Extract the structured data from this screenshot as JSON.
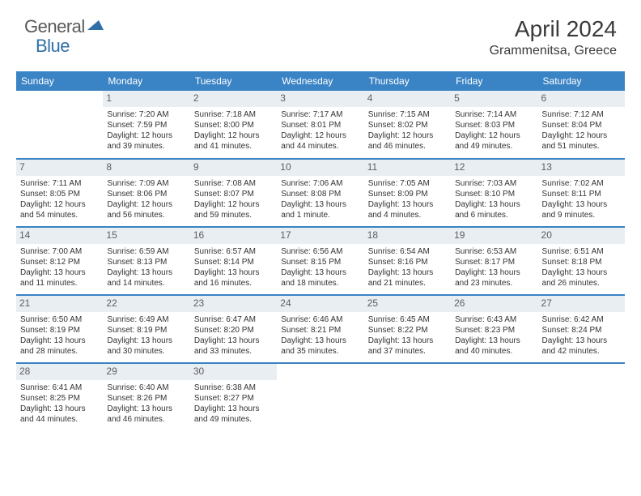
{
  "logo": {
    "general": "General",
    "blue": "Blue"
  },
  "title": "April 2024",
  "location": "Grammenitsa, Greece",
  "colors": {
    "header_bg": "#3a83c4",
    "daynum_bg": "#e9eef3",
    "week_border": "#3a83c4",
    "text": "#333333",
    "logo_gray": "#58595b",
    "logo_blue": "#2f6fa7"
  },
  "day_headers": [
    "Sunday",
    "Monday",
    "Tuesday",
    "Wednesday",
    "Thursday",
    "Friday",
    "Saturday"
  ],
  "weeks": [
    [
      {
        "day": "",
        "sunrise": "",
        "sunset": "",
        "daylight": ""
      },
      {
        "day": "1",
        "sunrise": "Sunrise: 7:20 AM",
        "sunset": "Sunset: 7:59 PM",
        "daylight": "Daylight: 12 hours and 39 minutes."
      },
      {
        "day": "2",
        "sunrise": "Sunrise: 7:18 AM",
        "sunset": "Sunset: 8:00 PM",
        "daylight": "Daylight: 12 hours and 41 minutes."
      },
      {
        "day": "3",
        "sunrise": "Sunrise: 7:17 AM",
        "sunset": "Sunset: 8:01 PM",
        "daylight": "Daylight: 12 hours and 44 minutes."
      },
      {
        "day": "4",
        "sunrise": "Sunrise: 7:15 AM",
        "sunset": "Sunset: 8:02 PM",
        "daylight": "Daylight: 12 hours and 46 minutes."
      },
      {
        "day": "5",
        "sunrise": "Sunrise: 7:14 AM",
        "sunset": "Sunset: 8:03 PM",
        "daylight": "Daylight: 12 hours and 49 minutes."
      },
      {
        "day": "6",
        "sunrise": "Sunrise: 7:12 AM",
        "sunset": "Sunset: 8:04 PM",
        "daylight": "Daylight: 12 hours and 51 minutes."
      }
    ],
    [
      {
        "day": "7",
        "sunrise": "Sunrise: 7:11 AM",
        "sunset": "Sunset: 8:05 PM",
        "daylight": "Daylight: 12 hours and 54 minutes."
      },
      {
        "day": "8",
        "sunrise": "Sunrise: 7:09 AM",
        "sunset": "Sunset: 8:06 PM",
        "daylight": "Daylight: 12 hours and 56 minutes."
      },
      {
        "day": "9",
        "sunrise": "Sunrise: 7:08 AM",
        "sunset": "Sunset: 8:07 PM",
        "daylight": "Daylight: 12 hours and 59 minutes."
      },
      {
        "day": "10",
        "sunrise": "Sunrise: 7:06 AM",
        "sunset": "Sunset: 8:08 PM",
        "daylight": "Daylight: 13 hours and 1 minute."
      },
      {
        "day": "11",
        "sunrise": "Sunrise: 7:05 AM",
        "sunset": "Sunset: 8:09 PM",
        "daylight": "Daylight: 13 hours and 4 minutes."
      },
      {
        "day": "12",
        "sunrise": "Sunrise: 7:03 AM",
        "sunset": "Sunset: 8:10 PM",
        "daylight": "Daylight: 13 hours and 6 minutes."
      },
      {
        "day": "13",
        "sunrise": "Sunrise: 7:02 AM",
        "sunset": "Sunset: 8:11 PM",
        "daylight": "Daylight: 13 hours and 9 minutes."
      }
    ],
    [
      {
        "day": "14",
        "sunrise": "Sunrise: 7:00 AM",
        "sunset": "Sunset: 8:12 PM",
        "daylight": "Daylight: 13 hours and 11 minutes."
      },
      {
        "day": "15",
        "sunrise": "Sunrise: 6:59 AM",
        "sunset": "Sunset: 8:13 PM",
        "daylight": "Daylight: 13 hours and 14 minutes."
      },
      {
        "day": "16",
        "sunrise": "Sunrise: 6:57 AM",
        "sunset": "Sunset: 8:14 PM",
        "daylight": "Daylight: 13 hours and 16 minutes."
      },
      {
        "day": "17",
        "sunrise": "Sunrise: 6:56 AM",
        "sunset": "Sunset: 8:15 PM",
        "daylight": "Daylight: 13 hours and 18 minutes."
      },
      {
        "day": "18",
        "sunrise": "Sunrise: 6:54 AM",
        "sunset": "Sunset: 8:16 PM",
        "daylight": "Daylight: 13 hours and 21 minutes."
      },
      {
        "day": "19",
        "sunrise": "Sunrise: 6:53 AM",
        "sunset": "Sunset: 8:17 PM",
        "daylight": "Daylight: 13 hours and 23 minutes."
      },
      {
        "day": "20",
        "sunrise": "Sunrise: 6:51 AM",
        "sunset": "Sunset: 8:18 PM",
        "daylight": "Daylight: 13 hours and 26 minutes."
      }
    ],
    [
      {
        "day": "21",
        "sunrise": "Sunrise: 6:50 AM",
        "sunset": "Sunset: 8:19 PM",
        "daylight": "Daylight: 13 hours and 28 minutes."
      },
      {
        "day": "22",
        "sunrise": "Sunrise: 6:49 AM",
        "sunset": "Sunset: 8:19 PM",
        "daylight": "Daylight: 13 hours and 30 minutes."
      },
      {
        "day": "23",
        "sunrise": "Sunrise: 6:47 AM",
        "sunset": "Sunset: 8:20 PM",
        "daylight": "Daylight: 13 hours and 33 minutes."
      },
      {
        "day": "24",
        "sunrise": "Sunrise: 6:46 AM",
        "sunset": "Sunset: 8:21 PM",
        "daylight": "Daylight: 13 hours and 35 minutes."
      },
      {
        "day": "25",
        "sunrise": "Sunrise: 6:45 AM",
        "sunset": "Sunset: 8:22 PM",
        "daylight": "Daylight: 13 hours and 37 minutes."
      },
      {
        "day": "26",
        "sunrise": "Sunrise: 6:43 AM",
        "sunset": "Sunset: 8:23 PM",
        "daylight": "Daylight: 13 hours and 40 minutes."
      },
      {
        "day": "27",
        "sunrise": "Sunrise: 6:42 AM",
        "sunset": "Sunset: 8:24 PM",
        "daylight": "Daylight: 13 hours and 42 minutes."
      }
    ],
    [
      {
        "day": "28",
        "sunrise": "Sunrise: 6:41 AM",
        "sunset": "Sunset: 8:25 PM",
        "daylight": "Daylight: 13 hours and 44 minutes."
      },
      {
        "day": "29",
        "sunrise": "Sunrise: 6:40 AM",
        "sunset": "Sunset: 8:26 PM",
        "daylight": "Daylight: 13 hours and 46 minutes."
      },
      {
        "day": "30",
        "sunrise": "Sunrise: 6:38 AM",
        "sunset": "Sunset: 8:27 PM",
        "daylight": "Daylight: 13 hours and 49 minutes."
      },
      {
        "day": "",
        "sunrise": "",
        "sunset": "",
        "daylight": ""
      },
      {
        "day": "",
        "sunrise": "",
        "sunset": "",
        "daylight": ""
      },
      {
        "day": "",
        "sunrise": "",
        "sunset": "",
        "daylight": ""
      },
      {
        "day": "",
        "sunrise": "",
        "sunset": "",
        "daylight": ""
      }
    ]
  ]
}
